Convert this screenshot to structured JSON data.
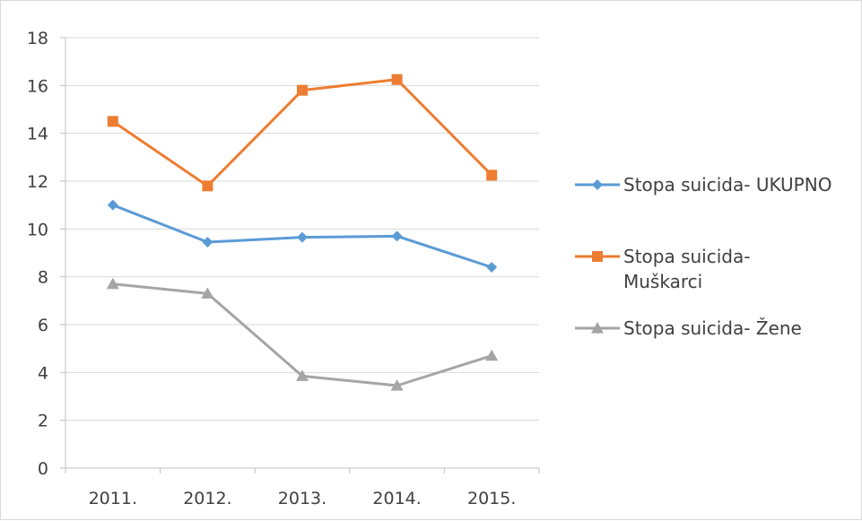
{
  "chart_data": {
    "type": "line",
    "title": "",
    "xlabel": "",
    "ylabel": "",
    "categories": [
      "2011.",
      "2012.",
      "2013.",
      "2014.",
      "2015."
    ],
    "ylim": [
      0,
      18
    ],
    "yticks": [
      "0",
      "2",
      "4",
      "6",
      "8",
      "10",
      "12",
      "14",
      "16",
      "18"
    ],
    "grid": true,
    "legend_position": "right",
    "series": [
      {
        "name": "Stopa suicida- UKUPNO",
        "label_lines": [
          "Stopa suicida- UKUPNO"
        ],
        "values": [
          11.0,
          9.45,
          9.65,
          9.7,
          8.4
        ],
        "color": "#5b9bd5",
        "marker": "diamond"
      },
      {
        "name": "Stopa suicida- Muškarci",
        "label_lines": [
          "Stopa suicida-",
          "Muškarci"
        ],
        "values": [
          14.5,
          11.8,
          15.8,
          16.25,
          12.25
        ],
        "color": "#ed7d31",
        "marker": "square"
      },
      {
        "name": "Stopa suicida- Žene",
        "label_lines": [
          "Stopa suicida- Žene"
        ],
        "values": [
          7.7,
          7.3,
          3.85,
          3.45,
          4.7
        ],
        "color": "#a5a5a5",
        "marker": "triangle"
      }
    ]
  }
}
